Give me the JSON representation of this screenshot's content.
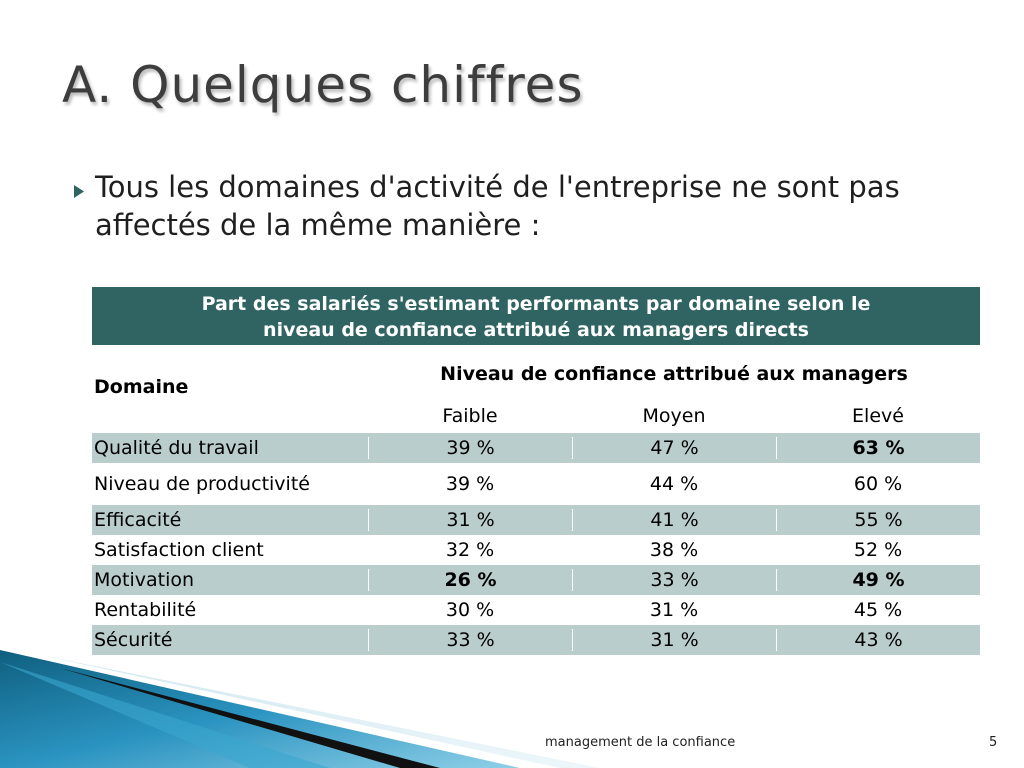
{
  "title": "A. Quelques chiffres",
  "bullet": {
    "text": "Tous les domaines d'activité de l'entreprise ne sont pas affectés de la même manière :"
  },
  "table": {
    "caption_line1": "Part des salariés s'estimant performants par domaine selon le",
    "caption_line2": "niveau de confiance attribué aux managers directs",
    "col_domain": "Domaine",
    "col_group": "Niveau de confiance attribué aux managers",
    "levels": [
      "Faible",
      "Moyen",
      "Elevé"
    ],
    "rows": [
      {
        "domain": "Qualité du travail",
        "values": [
          "39 %",
          "47 %",
          "63 %"
        ]
      },
      {
        "domain": "Niveau de productivité",
        "values": [
          "39 %",
          "44 %",
          "60 %"
        ]
      },
      {
        "domain": "Efficacité",
        "values": [
          "31 %",
          "41 %",
          "55 %"
        ]
      },
      {
        "domain": "Satisfaction client",
        "values": [
          "32 %",
          "38 %",
          "52 %"
        ]
      },
      {
        "domain": "Motivation",
        "values": [
          "26 %",
          "33 %",
          "49 %"
        ]
      },
      {
        "domain": "Rentabilité",
        "values": [
          "30 %",
          "31 %",
          "45 %"
        ]
      },
      {
        "domain": "Sécurité",
        "values": [
          "33 %",
          "31 %",
          "43 %"
        ]
      }
    ]
  },
  "footer": {
    "text": "management de la confiance",
    "page": "5"
  },
  "colors": {
    "caption_bg": "#2f6462",
    "row_shade": "#b9cdcc",
    "bullet": "#2f6462"
  }
}
